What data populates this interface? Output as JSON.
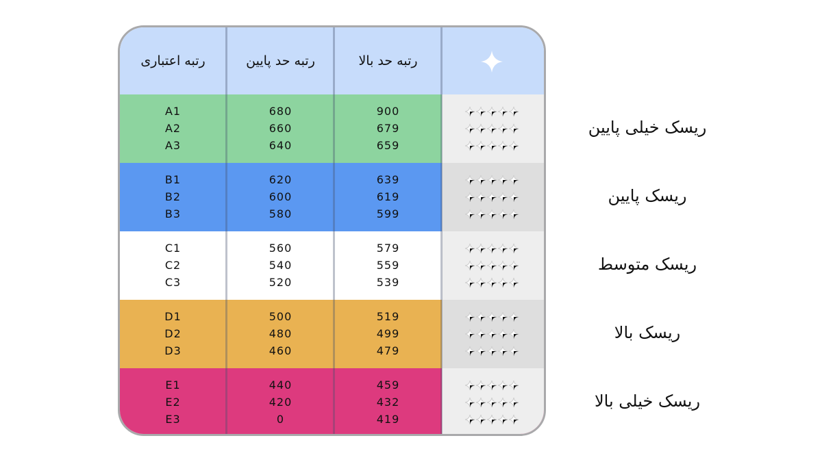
{
  "colors": {
    "header": "#c7dcfb",
    "very_low_risk": "#8dd49f",
    "low_risk": "#5b98f1",
    "medium_risk": "#ffffff",
    "high_risk": "#e9b252",
    "very_high_risk": "#dd3a7e",
    "star_filled": "#111111",
    "star_empty": "#cfcfcf"
  },
  "header": {
    "sparkle_icon": "sparkle-icon",
    "upper_bound": "رتبه حد بالا",
    "lower_bound": "رتبه حد پایین",
    "credit_grade": "رتبه اعتباری"
  },
  "rows": [
    {
      "grade": "A1",
      "lower": "680",
      "upper": "900",
      "stars": 5
    },
    {
      "grade": "A2",
      "lower": "660",
      "upper": "679",
      "stars": 4.5
    },
    {
      "grade": "A3",
      "lower": "640",
      "upper": "659",
      "stars": 4.25
    },
    {
      "grade": "B1",
      "lower": "620",
      "upper": "639",
      "stars": 4
    },
    {
      "grade": "B2",
      "lower": "600",
      "upper": "619",
      "stars": 3.75
    },
    {
      "grade": "B3",
      "lower": "580",
      "upper": "599",
      "stars": 3.5
    },
    {
      "grade": "C1",
      "lower": "560",
      "upper": "579",
      "stars": 3
    },
    {
      "grade": "C2",
      "lower": "540",
      "upper": "559",
      "stars": 2.75
    },
    {
      "grade": "C3",
      "lower": "520",
      "upper": "539",
      "stars": 2.5
    },
    {
      "grade": "D1",
      "lower": "500",
      "upper": "519",
      "stars": 2
    },
    {
      "grade": "D2",
      "lower": "480",
      "upper": "499",
      "stars": 1.75
    },
    {
      "grade": "D3",
      "lower": "460",
      "upper": "479",
      "stars": 1.5
    },
    {
      "grade": "E1",
      "lower": "440",
      "upper": "459",
      "stars": 1
    },
    {
      "grade": "E2",
      "lower": "420",
      "upper": "432",
      "stars": 0.75
    },
    {
      "grade": "E3",
      "lower": "0",
      "upper": "419",
      "stars": 0.5
    }
  ],
  "risk_labels": [
    "ریسک خیلی پایین",
    "ریسک پایین",
    "ریسک متوسط",
    "ریسک بالا",
    "ریسک خیلی بالا"
  ]
}
